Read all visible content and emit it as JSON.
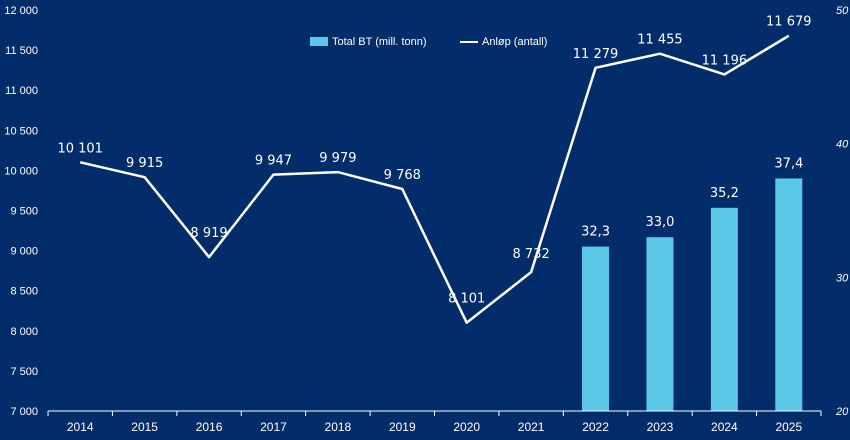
{
  "chart_data": {
    "type": "bar+line",
    "categories": [
      "2014",
      "2015",
      "2016",
      "2017",
      "2018",
      "2019",
      "2020",
      "2021",
      "2022",
      "2023",
      "2024",
      "2025"
    ],
    "series": [
      {
        "name": "Total BT (mill. tonn)",
        "type": "bar",
        "axis": "right",
        "values": [
          null,
          null,
          null,
          null,
          null,
          null,
          null,
          null,
          32.3,
          33.0,
          35.2,
          37.4
        ],
        "labels": [
          "",
          "",
          "",
          "",
          "",
          "",
          "",
          "",
          "32,3",
          "33,0",
          "35,2",
          "37,4"
        ],
        "color": "#5bc8e8"
      },
      {
        "name": "Anløp (antall)",
        "type": "line",
        "axis": "left",
        "values": [
          10101,
          9915,
          8919,
          9947,
          9979,
          9768,
          8101,
          8732,
          11279,
          11455,
          11196,
          11679
        ],
        "labels": [
          "10 101",
          "9 915",
          "8 919",
          "9 947",
          "9 979",
          "9 768",
          "8 101",
          "8 732",
          "11 279",
          "11 455",
          "11 196",
          "11 679"
        ],
        "color": "#ffffff"
      }
    ],
    "left_axis": {
      "ylim": [
        7000,
        12000
      ],
      "ticks": [
        7000,
        7500,
        8000,
        8500,
        9000,
        9500,
        10000,
        10500,
        11000,
        11500,
        12000
      ],
      "tick_labels": [
        "7 000",
        "7 500",
        "8 000",
        "8 500",
        "9 000",
        "9 500",
        "10 000",
        "10 500",
        "11 000",
        "11 500",
        "12 000"
      ]
    },
    "right_axis": {
      "ylim": [
        20,
        50
      ],
      "ticks": [
        20,
        30,
        40,
        50
      ],
      "tick_labels": [
        "20",
        "30",
        "40",
        "50"
      ]
    },
    "legend": {
      "position": "top-center",
      "items": [
        "Total BT (mill. tonn)",
        "Anløp (antall)"
      ]
    },
    "title": "",
    "xlabel": "",
    "ylabel": ""
  },
  "colors": {
    "background": "#032d6a",
    "bar": "#5bc8e8",
    "line": "#ffffff",
    "axis": "#ffffff"
  }
}
